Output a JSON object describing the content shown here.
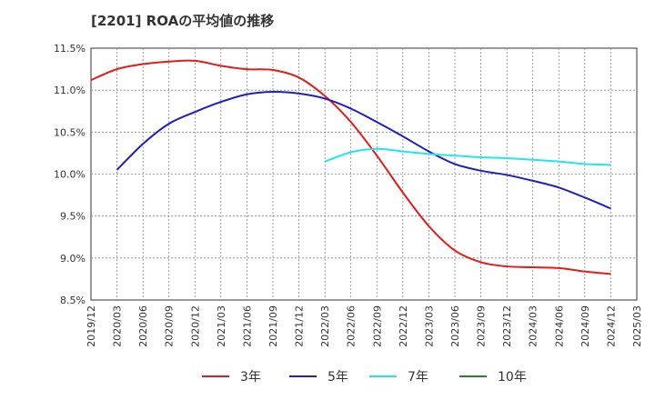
{
  "title": "[2201]  ROAの平均値の推移",
  "chart_data": {
    "type": "line",
    "title": "[2201]  ROAの平均値の推移",
    "xlabel": "",
    "ylabel": "",
    "ylim": [
      8.5,
      11.5
    ],
    "grid": true,
    "legend_position": "bottom",
    "x_ticks": [
      "2019/12",
      "2020/03",
      "2020/06",
      "2020/09",
      "2020/12",
      "2021/03",
      "2021/06",
      "2021/09",
      "2021/12",
      "2022/03",
      "2022/06",
      "2022/09",
      "2022/12",
      "2023/03",
      "2023/06",
      "2023/09",
      "2023/12",
      "2024/03",
      "2024/06",
      "2024/09",
      "2024/12",
      "2025/03"
    ],
    "y_ticks": [
      {
        "value": 8.5,
        "label": "8.5%"
      },
      {
        "value": 9.0,
        "label": "9.0%"
      },
      {
        "value": 9.5,
        "label": "9.5%"
      },
      {
        "value": 10.0,
        "label": "10.0%"
      },
      {
        "value": 10.5,
        "label": "10.5%"
      },
      {
        "value": 11.0,
        "label": "11.0%"
      },
      {
        "value": 11.5,
        "label": "11.5%"
      }
    ],
    "series": [
      {
        "name": "3年",
        "color": "#e41a1c",
        "points": [
          [
            "2019/12",
            11.12
          ],
          [
            "2020/03",
            11.25
          ],
          [
            "2020/06",
            11.31
          ],
          [
            "2020/09",
            11.34
          ],
          [
            "2020/12",
            11.35
          ],
          [
            "2021/03",
            11.29
          ],
          [
            "2021/06",
            11.25
          ],
          [
            "2021/09",
            11.24
          ],
          [
            "2021/12",
            11.15
          ],
          [
            "2022/03",
            10.93
          ],
          [
            "2022/06",
            10.62
          ],
          [
            "2022/09",
            10.22
          ],
          [
            "2022/12",
            9.78
          ],
          [
            "2023/03",
            9.38
          ],
          [
            "2023/06",
            9.09
          ],
          [
            "2023/09",
            8.95
          ],
          [
            "2023/12",
            8.9
          ],
          [
            "2024/03",
            8.89
          ],
          [
            "2024/06",
            8.88
          ],
          [
            "2024/09",
            8.84
          ],
          [
            "2024/12",
            8.81
          ]
        ]
      },
      {
        "name": "5年",
        "color": "#1f1fbf",
        "points": [
          [
            "2020/03",
            10.05
          ],
          [
            "2020/06",
            10.36
          ],
          [
            "2020/09",
            10.6
          ],
          [
            "2020/12",
            10.74
          ],
          [
            "2021/03",
            10.86
          ],
          [
            "2021/06",
            10.95
          ],
          [
            "2021/09",
            10.98
          ],
          [
            "2021/12",
            10.96
          ],
          [
            "2022/03",
            10.9
          ],
          [
            "2022/06",
            10.78
          ],
          [
            "2022/09",
            10.62
          ],
          [
            "2022/12",
            10.45
          ],
          [
            "2023/03",
            10.27
          ],
          [
            "2023/06",
            10.12
          ],
          [
            "2023/09",
            10.04
          ],
          [
            "2023/12",
            9.99
          ],
          [
            "2024/03",
            9.92
          ],
          [
            "2024/06",
            9.84
          ],
          [
            "2024/09",
            9.72
          ],
          [
            "2024/12",
            9.59
          ]
        ]
      },
      {
        "name": "7年",
        "color": "#22e5ee",
        "points": [
          [
            "2022/03",
            10.15
          ],
          [
            "2022/06",
            10.26
          ],
          [
            "2022/09",
            10.3
          ],
          [
            "2022/12",
            10.27
          ],
          [
            "2023/03",
            10.24
          ],
          [
            "2023/06",
            10.22
          ],
          [
            "2023/09",
            10.2
          ],
          [
            "2023/12",
            10.19
          ],
          [
            "2024/03",
            10.17
          ],
          [
            "2024/06",
            10.15
          ],
          [
            "2024/09",
            10.12
          ],
          [
            "2024/12",
            10.11
          ]
        ]
      },
      {
        "name": "10年",
        "color": "#1f8a1f",
        "points": []
      }
    ]
  }
}
